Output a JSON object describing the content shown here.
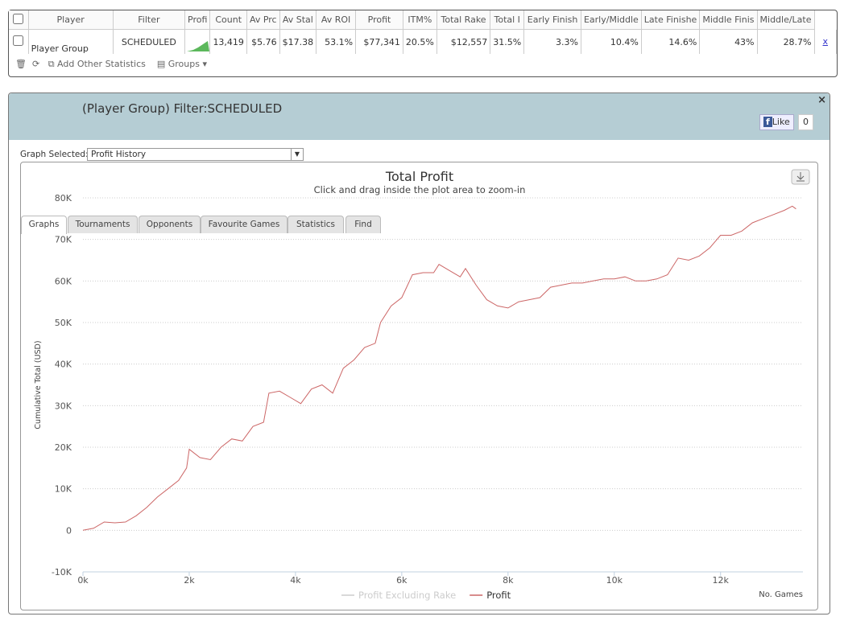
{
  "table": {
    "headers": [
      "Player",
      "Filter",
      "Profi",
      "Count",
      "Av Prc",
      "Av Stal",
      "Av ROI",
      "Profit",
      "ITM%",
      "Total Rake",
      "Total I",
      "Early Finish",
      "Early/Middle",
      "Late Finishe",
      "Middle Finis",
      "Middle/Late"
    ],
    "row": {
      "player": "Player Group",
      "filter": "SCHEDULED",
      "values": [
        "13,419",
        "$5.76",
        "$17.38",
        "53.1%",
        "$77,341",
        "20.5%",
        "$12,557",
        "31.5%",
        "3.3%",
        "10.4%",
        "14.6%",
        "43%",
        "28.7%"
      ],
      "close": "x"
    }
  },
  "toolbar": {
    "add": "Add Other Statistics",
    "groups": "Groups"
  },
  "panel": {
    "title": "(Player Group) Filter:SCHEDULED",
    "tabs": [
      "Graphs",
      "Tournaments",
      "Opponents",
      "Favourite Games",
      "Statistics",
      "Find"
    ],
    "like": "Like",
    "like_count": "0",
    "close": "×",
    "graph_label": "Graph Selected:",
    "graph_value": "Profit History"
  },
  "chart_data": {
    "type": "line",
    "title": "Total Profit",
    "subtitle": "Click and drag inside the plot area to zoom-in",
    "x_label": "No. Games",
    "y_label": "Cumulative Total (USD)",
    "xlim": [
      0,
      13550
    ],
    "ylim": [
      -10000,
      80000
    ],
    "xticks": [
      {
        "value": 0,
        "label": "0k"
      },
      {
        "value": 2000,
        "label": "2k"
      },
      {
        "value": 4000,
        "label": "4k"
      },
      {
        "value": 6000,
        "label": "6k"
      },
      {
        "value": 8000,
        "label": "8k"
      },
      {
        "value": 10000,
        "label": "10k"
      },
      {
        "value": 12000,
        "label": "12k"
      }
    ],
    "yticks": [
      {
        "value": -10000,
        "label": "-10K"
      },
      0,
      {
        "value": 10000,
        "label": "10K"
      },
      {
        "value": 20000,
        "label": "20K"
      },
      {
        "value": 30000,
        "label": "30K"
      },
      {
        "value": 40000,
        "label": "40K"
      },
      {
        "value": 50000,
        "label": "50K"
      },
      {
        "value": 60000,
        "label": "60K"
      },
      {
        "value": 70000,
        "label": "70K"
      },
      {
        "value": 80000,
        "label": "80K"
      }
    ],
    "grid": true,
    "x": [
      0,
      200,
      400,
      600,
      800,
      1000,
      1200,
      1400,
      1600,
      1800,
      1950,
      2000,
      2200,
      2400,
      2600,
      2800,
      3000,
      3200,
      3400,
      3500,
      3700,
      3900,
      4100,
      4300,
      4500,
      4700,
      4900,
      5100,
      5300,
      5500,
      5600,
      5800,
      6000,
      6200,
      6400,
      6600,
      6700,
      6900,
      7100,
      7200,
      7400,
      7600,
      7800,
      8000,
      8200,
      8400,
      8600,
      8800,
      9000,
      9200,
      9400,
      9600,
      9800,
      10000,
      10200,
      10400,
      10600,
      10800,
      11000,
      11200,
      11400,
      11600,
      11800,
      12000,
      12200,
      12400,
      12600,
      12800,
      13000,
      13200,
      13350,
      13419
    ],
    "series": [
      {
        "name": "Profit Excluding Rake",
        "color": "#cccccc",
        "hidden": true
      },
      {
        "name": "Profit",
        "color": "#cc6666",
        "values": [
          0,
          500,
          2000,
          1800,
          2000,
          3500,
          5500,
          8000,
          10000,
          12000,
          15000,
          19500,
          17500,
          17000,
          20000,
          22000,
          21500,
          25000,
          26000,
          33000,
          33500,
          32000,
          30500,
          34000,
          35000,
          33000,
          39000,
          41000,
          44000,
          45000,
          50000,
          54000,
          56000,
          61500,
          62000,
          62000,
          64000,
          62500,
          61000,
          63000,
          59000,
          55500,
          54000,
          53500,
          55000,
          55500,
          56000,
          58500,
          59000,
          59500,
          59500,
          60000,
          60500,
          60500,
          61000,
          60000,
          60000,
          60500,
          61500,
          65500,
          65000,
          66000,
          68000,
          71000,
          71000,
          72000,
          74000,
          75000,
          76000,
          77000,
          78000,
          77341
        ]
      }
    ]
  }
}
